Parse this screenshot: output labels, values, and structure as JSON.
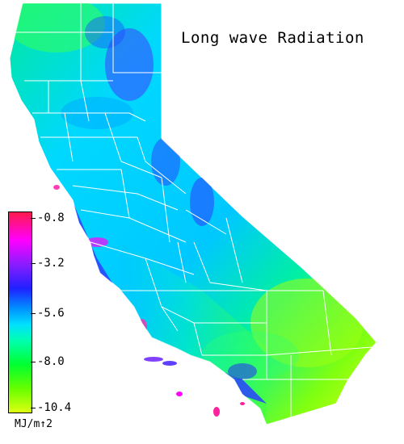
{
  "map": {
    "title": "Long wave Radiation",
    "region": "California",
    "legend": {
      "ticks": [
        "-0.8",
        "-3.2",
        "-5.6",
        "-8.0",
        "-10.4"
      ],
      "unit": "MJ/m↑2",
      "colors": [
        "#ff1a4a",
        "#ff00ff",
        "#8a1cff",
        "#2020ff",
        "#0090ff",
        "#00e0ff",
        "#00ffb0",
        "#00ff30",
        "#66ff00",
        "#ddff10"
      ]
    },
    "style": {
      "background": "#ffffff",
      "county_border_color": "#ffffff",
      "text_color": "#000000"
    }
  }
}
